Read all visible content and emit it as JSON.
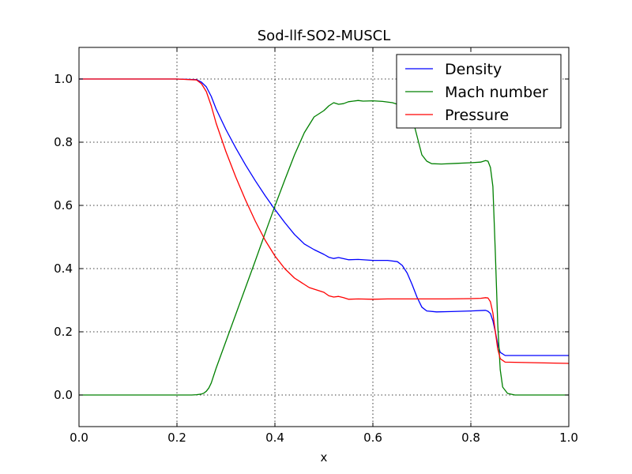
{
  "chart_data": {
    "type": "line",
    "title": "Sod-llf-SO2-MUSCL",
    "xlabel": "x",
    "ylabel": "",
    "xlim": [
      0.0,
      1.0
    ],
    "ylim": [
      -0.1,
      1.1
    ],
    "xticks": [
      "0.0",
      "0.2",
      "0.4",
      "0.6",
      "0.8",
      "1.0"
    ],
    "yticks": [
      "0.0",
      "0.2",
      "0.4",
      "0.6",
      "0.8",
      "1.0"
    ],
    "xtick_values": [
      0.0,
      0.2,
      0.4,
      0.6,
      0.8,
      1.0
    ],
    "ytick_values": [
      0.0,
      0.2,
      0.4,
      0.6,
      0.8,
      1.0
    ],
    "grid": true,
    "legend_position": "top-right",
    "series": [
      {
        "name": "Density",
        "color": "#0000ff",
        "x": [
          0.0,
          0.2,
          0.24,
          0.25,
          0.26,
          0.27,
          0.28,
          0.3,
          0.32,
          0.34,
          0.36,
          0.38,
          0.4,
          0.42,
          0.44,
          0.46,
          0.48,
          0.5,
          0.51,
          0.52,
          0.53,
          0.55,
          0.57,
          0.6,
          0.63,
          0.65,
          0.66,
          0.67,
          0.68,
          0.69,
          0.7,
          0.71,
          0.73,
          0.76,
          0.8,
          0.83,
          0.835,
          0.84,
          0.845,
          0.85,
          0.855,
          0.86,
          0.87,
          1.0
        ],
        "y": [
          1.0,
          1.0,
          0.998,
          0.99,
          0.975,
          0.945,
          0.905,
          0.84,
          0.782,
          0.728,
          0.678,
          0.631,
          0.587,
          0.546,
          0.508,
          0.478,
          0.46,
          0.445,
          0.436,
          0.432,
          0.435,
          0.428,
          0.429,
          0.426,
          0.426,
          0.422,
          0.41,
          0.386,
          0.35,
          0.31,
          0.278,
          0.266,
          0.263,
          0.264,
          0.266,
          0.268,
          0.265,
          0.258,
          0.235,
          0.2,
          0.16,
          0.135,
          0.125,
          0.125
        ]
      },
      {
        "name": "Mach number",
        "color": "#008000",
        "x": [
          0.0,
          0.23,
          0.24,
          0.25,
          0.255,
          0.26,
          0.265,
          0.27,
          0.28,
          0.3,
          0.32,
          0.34,
          0.36,
          0.38,
          0.4,
          0.42,
          0.44,
          0.46,
          0.47,
          0.48,
          0.49,
          0.5,
          0.51,
          0.52,
          0.53,
          0.54,
          0.55,
          0.56,
          0.57,
          0.58,
          0.6,
          0.62,
          0.64,
          0.66,
          0.68,
          0.69,
          0.7,
          0.71,
          0.72,
          0.74,
          0.77,
          0.8,
          0.82,
          0.83,
          0.835,
          0.84,
          0.845,
          0.85,
          0.855,
          0.86,
          0.865,
          0.875,
          0.89,
          1.0
        ],
        "y": [
          0.0,
          0.0,
          0.001,
          0.003,
          0.006,
          0.012,
          0.022,
          0.038,
          0.085,
          0.17,
          0.255,
          0.34,
          0.425,
          0.512,
          0.598,
          0.68,
          0.76,
          0.83,
          0.855,
          0.88,
          0.89,
          0.9,
          0.915,
          0.925,
          0.92,
          0.922,
          0.928,
          0.93,
          0.932,
          0.93,
          0.931,
          0.929,
          0.925,
          0.915,
          0.88,
          0.82,
          0.76,
          0.74,
          0.732,
          0.731,
          0.733,
          0.735,
          0.737,
          0.742,
          0.74,
          0.72,
          0.66,
          0.45,
          0.22,
          0.08,
          0.025,
          0.005,
          0.0,
          0.0
        ]
      },
      {
        "name": "Pressure",
        "color": "#ff0000",
        "x": [
          0.0,
          0.2,
          0.24,
          0.25,
          0.26,
          0.27,
          0.28,
          0.3,
          0.32,
          0.34,
          0.36,
          0.38,
          0.4,
          0.42,
          0.44,
          0.46,
          0.47,
          0.48,
          0.5,
          0.51,
          0.52,
          0.53,
          0.54,
          0.55,
          0.57,
          0.6,
          0.63,
          0.66,
          0.7,
          0.75,
          0.8,
          0.82,
          0.83,
          0.835,
          0.84,
          0.845,
          0.85,
          0.855,
          0.86,
          0.87,
          1.0
        ],
        "y": [
          1.0,
          1.0,
          0.997,
          0.985,
          0.96,
          0.915,
          0.86,
          0.77,
          0.69,
          0.617,
          0.55,
          0.49,
          0.44,
          0.4,
          0.37,
          0.35,
          0.34,
          0.335,
          0.325,
          0.314,
          0.31,
          0.312,
          0.308,
          0.303,
          0.304,
          0.303,
          0.304,
          0.304,
          0.304,
          0.304,
          0.305,
          0.306,
          0.308,
          0.307,
          0.295,
          0.26,
          0.2,
          0.145,
          0.115,
          0.104,
          0.1
        ]
      }
    ]
  }
}
